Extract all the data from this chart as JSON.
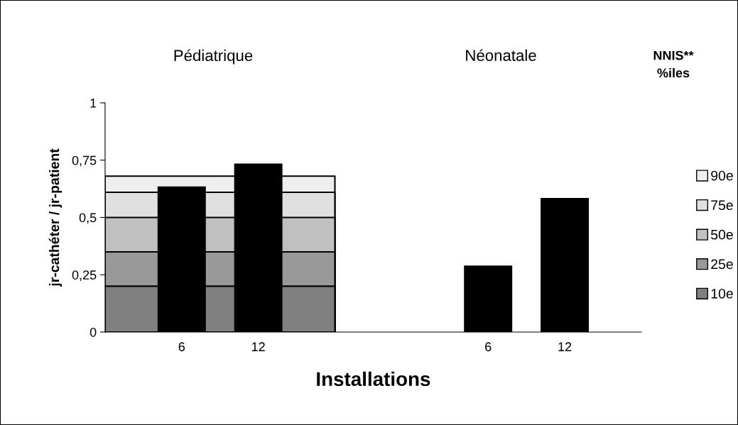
{
  "chart_data": {
    "type": "bar",
    "xlabel": "Installations",
    "ylabel": "jr-cathéter / jr-patient",
    "legend_title": "NNIS**\n%iles",
    "annotations": [
      "Pédiatrique",
      "Néonatale"
    ],
    "categories": [
      null,
      "6",
      "12",
      null,
      null,
      "6",
      "12"
    ],
    "ylim": [
      0,
      1
    ],
    "yticks": [
      0,
      {
        "value": 0.25,
        "label": "0,25"
      },
      {
        "value": 0.5,
        "label": "0,5"
      },
      {
        "value": 0.75,
        "label": "0,75"
      },
      1
    ],
    "grid": false,
    "legend": "right",
    "series": [
      {
        "name": "90e",
        "type": "area",
        "color": "#eeeeee",
        "values": [
          0.68,
          0.68,
          null,
          0.68,
          null,
          null,
          null
        ]
      },
      {
        "name": "75e",
        "type": "area",
        "color": "#e0e0e0",
        "values": [
          0.61,
          null,
          null,
          0.61,
          null,
          null,
          null
        ]
      },
      {
        "name": "50e",
        "type": "area",
        "color": "#c0c0c0",
        "values": [
          0.5,
          null,
          null,
          0.5,
          null,
          null,
          null
        ]
      },
      {
        "name": "25e",
        "type": "area",
        "color": "#999999",
        "values": [
          0.35,
          null,
          null,
          0.35,
          null,
          null,
          null
        ]
      },
      {
        "name": "10e",
        "type": "area",
        "color": "#808080",
        "values": [
          0.2,
          null,
          null,
          0.2,
          null,
          null,
          null
        ]
      },
      {
        "color": "#000000",
        "values": [
          null,
          0.635,
          0.735,
          null,
          null,
          0.29,
          0.585
        ]
      }
    ]
  }
}
